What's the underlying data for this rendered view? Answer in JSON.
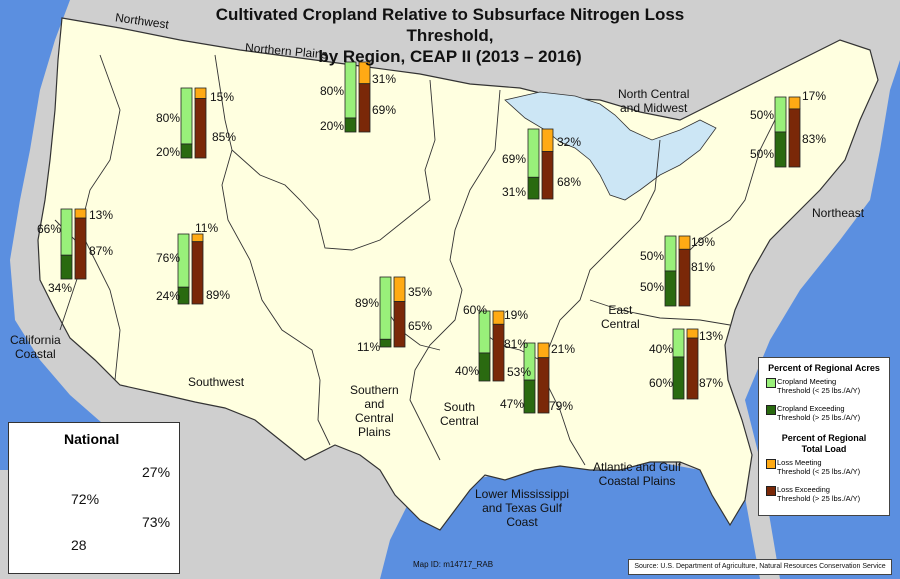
{
  "title": "Cultivated Cropland Relative to Subsurface Nitrogen Loss Threshold,",
  "title_line2": "by Region, CEAP II (2013 – 2016)",
  "colors": {
    "meeting_acres": "#99f07a",
    "exceeding_acres": "#2a6a10",
    "meeting_load": "#ffaa14",
    "exceeding_load": "#7a2808",
    "land": "#ffffe0",
    "water": "#5b8fe0",
    "lakes": "#cce6f5"
  },
  "regions": [
    {
      "name": "Northwest",
      "meet_acres": 80,
      "exceed_acres": 20,
      "meet_load": 15,
      "exceed_load": 85,
      "label_meet_acres": "80%",
      "label_exceed_acres": "20%",
      "label_meet_load": "15%",
      "label_exceed_load": "85%"
    },
    {
      "name": "Northern Plains",
      "meet_acres": 80,
      "exceed_acres": 20,
      "meet_load": 31,
      "exceed_load": 69,
      "label_meet_acres": "80%",
      "label_exceed_acres": "20%",
      "label_meet_load": "31%",
      "label_exceed_load": "69%"
    },
    {
      "name": "North Central and Midwest",
      "meet_acres": 69,
      "exceed_acres": 31,
      "meet_load": 32,
      "exceed_load": 68,
      "label_meet_acres": "69%",
      "label_exceed_acres": "31%",
      "label_meet_load": "32%",
      "label_exceed_load": "68%"
    },
    {
      "name": "Northeast",
      "meet_acres": 50,
      "exceed_acres": 50,
      "meet_load": 17,
      "exceed_load": 83,
      "label_meet_acres": "50%",
      "label_exceed_acres": "50%",
      "label_meet_load": "17%",
      "label_exceed_load": "83%"
    },
    {
      "name": "California Coastal",
      "meet_acres": 66,
      "exceed_acres": 34,
      "meet_load": 13,
      "exceed_load": 87,
      "label_meet_acres": "66%",
      "label_exceed_acres": "34%",
      "label_meet_load": "13%",
      "label_exceed_load": "87%"
    },
    {
      "name": "Southwest",
      "meet_acres": 76,
      "exceed_acres": 24,
      "meet_load": 11,
      "exceed_load": 89,
      "label_meet_acres": "76%",
      "label_exceed_acres": "24%",
      "label_meet_load": "11%",
      "label_exceed_load": "89%"
    },
    {
      "name": "Southern and Central Plains",
      "meet_acres": 89,
      "exceed_acres": 11,
      "meet_load": 35,
      "exceed_load": 65,
      "label_meet_acres": "89%",
      "label_exceed_acres": "11%",
      "label_meet_load": "35%",
      "label_exceed_load": "65%"
    },
    {
      "name": "South Central",
      "meet_acres": 60,
      "exceed_acres": 40,
      "meet_load": 19,
      "exceed_load": 81,
      "label_meet_acres": "60%",
      "label_exceed_acres": "40%",
      "label_meet_load": "19%",
      "label_exceed_load": "81%"
    },
    {
      "name": "Lower Mississippi and Texas Gulf Coast",
      "meet_acres": 53,
      "exceed_acres": 47,
      "meet_load": 21,
      "exceed_load": 79,
      "label_meet_acres": "53%",
      "label_exceed_acres": "47%",
      "label_meet_load": "21%",
      "label_exceed_load": "79%"
    },
    {
      "name": "East Central",
      "meet_acres": 50,
      "exceed_acres": 50,
      "meet_load": 19,
      "exceed_load": 81,
      "label_meet_acres": "50%",
      "label_exceed_acres": "50%",
      "label_meet_load": "19%",
      "label_exceed_load": "81%"
    },
    {
      "name": "Atlantic and Gulf Coastal Plains",
      "meet_acres": 40,
      "exceed_acres": 60,
      "meet_load": 13,
      "exceed_load": 87,
      "label_meet_acres": "40%",
      "label_exceed_acres": "60%",
      "label_meet_load": "13%",
      "label_exceed_load": "87%"
    }
  ],
  "region_labels": {
    "northwest": "Northwest",
    "northern_plains": "Northern Plains",
    "north_central_1": "North Central",
    "north_central_2": "and Midwest",
    "northeast": "Northeast",
    "california_1": "California",
    "california_2": "Coastal",
    "southwest": "Southwest",
    "southern_1": "Southern",
    "southern_2": "and",
    "southern_3": "Central",
    "southern_4": "Plains",
    "south_central_1": "South",
    "south_central_2": "Central",
    "east_central_1": "East",
    "east_central_2": "Central",
    "atlantic_1": "Atlantic and Gulf",
    "atlantic_2": "Coastal Plains",
    "lower_miss_1": "Lower Mississippi",
    "lower_miss_2": "and Texas Gulf",
    "lower_miss_3": "Coast"
  },
  "national": {
    "title": "National",
    "meet_acres": 72,
    "exceed_acres": 28,
    "meet_load": 27,
    "exceed_load": 73,
    "label_meet_acres": "72%",
    "label_exceed_acres": "28",
    "label_meet_load": "27%",
    "label_exceed_load": "73%"
  },
  "legend": {
    "heading_acres": "Percent of Regional Acres",
    "acres_meeting_1": "Cropland Meeting",
    "acres_meeting_2": "Threshold (< 25 lbs./A/Y)",
    "acres_exceeding_1": "Cropland Exceeding",
    "acres_exceeding_2": "Threshold (> 25 lbs./A/Y)",
    "heading_load_1": "Percent of Regional",
    "heading_load_2": "Total Load",
    "load_meeting_1": "Loss Meeting",
    "load_meeting_2": "Threshold (< 25 lbs./A/Y)",
    "load_exceeding_1": "Loss Exceeding",
    "load_exceeding_2": "Threshold (> 25 lbs./A/Y)"
  },
  "map_id": "Map ID:   m14717_RAB",
  "source": "Source: U.S. Department of Agriculture, Natural Resources Conservation Service"
}
